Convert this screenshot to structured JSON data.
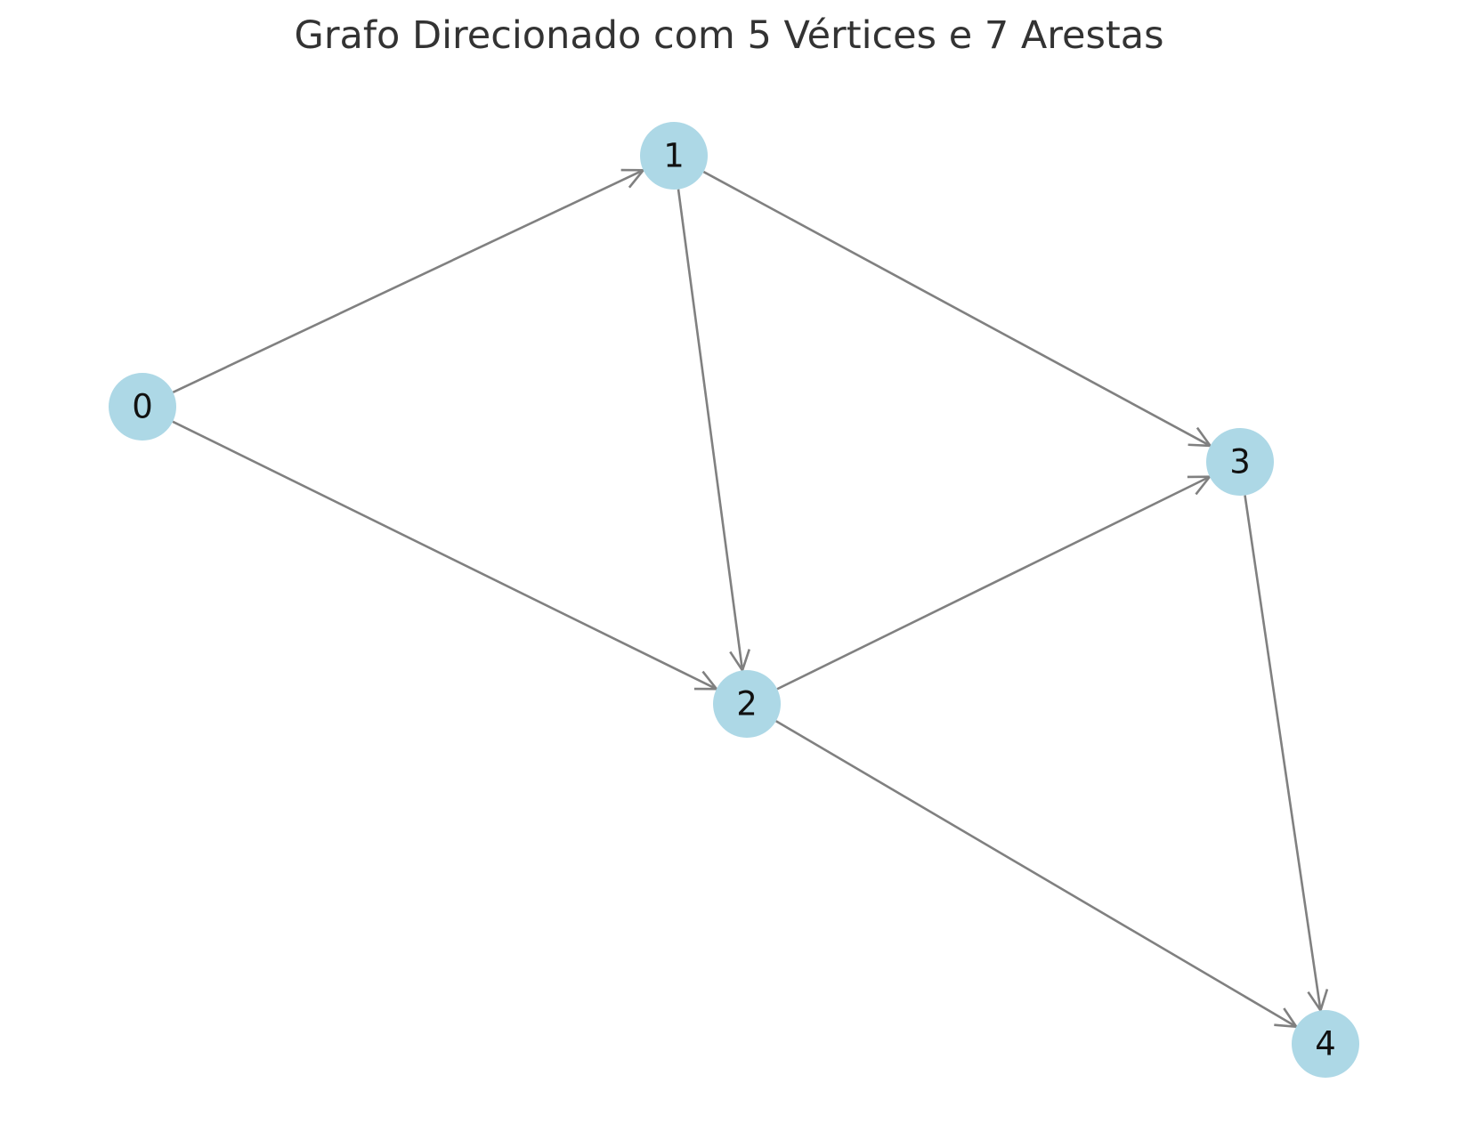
{
  "title": "Grafo Direcionado com 5 Vértices e 7 Arestas",
  "colors": {
    "node_fill": "#add8e6",
    "edge_stroke": "#808080",
    "label_color": "#111111",
    "title_color": "#333333",
    "background": "#ffffff"
  },
  "nodes": [
    {
      "id": "0",
      "label": "0"
    },
    {
      "id": "1",
      "label": "1"
    },
    {
      "id": "2",
      "label": "2"
    },
    {
      "id": "3",
      "label": "3"
    },
    {
      "id": "4",
      "label": "4"
    }
  ],
  "edges": [
    {
      "source": "0",
      "target": "1"
    },
    {
      "source": "0",
      "target": "2"
    },
    {
      "source": "1",
      "target": "2"
    },
    {
      "source": "1",
      "target": "3"
    },
    {
      "source": "2",
      "target": "3"
    },
    {
      "source": "2",
      "target": "4"
    },
    {
      "source": "3",
      "target": "4"
    }
  ]
}
